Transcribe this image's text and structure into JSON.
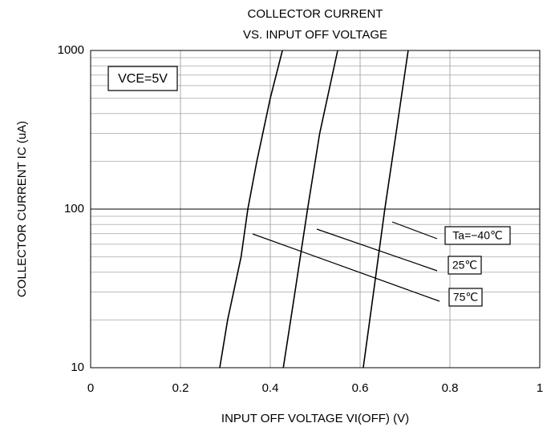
{
  "chart_data": {
    "type": "line",
    "title": [
      "COLLECTOR CURRENT",
      "VS. INPUT OFF VOLTAGE"
    ],
    "xlabel": "INPUT OFF VOLTAGE VI(OFF) (V)",
    "ylabel": "COLLECTOR CURRENT IC (uA)",
    "annotation": "VCE=5V",
    "xlim": [
      0,
      1
    ],
    "xticks": [
      0,
      0.2,
      0.4,
      0.6,
      0.8,
      1
    ],
    "ylim": [
      10,
      1000
    ],
    "yticks": [
      10,
      100,
      1000
    ],
    "yminorticks": [
      20,
      30,
      40,
      50,
      60,
      70,
      80,
      90,
      200,
      300,
      400,
      500,
      600,
      700,
      800,
      900
    ],
    "ylog": true,
    "grid": true,
    "series": [
      {
        "name": "Ta=−40℃",
        "color": "#000000",
        "x": [
          0.607,
          0.63,
          0.655,
          0.68,
          0.707
        ],
        "values": [
          10,
          30,
          100,
          300,
          1000
        ]
      },
      {
        "name": "25℃",
        "color": "#000000",
        "x": [
          0.429,
          0.455,
          0.483,
          0.51,
          0.55
        ],
        "values": [
          10,
          30,
          100,
          300,
          1000
        ]
      },
      {
        "name": "75℃",
        "color": "#000000",
        "x": [
          0.2875,
          0.305,
          0.335,
          0.35,
          0.37,
          0.4,
          0.427
        ],
        "values": [
          10,
          20,
          50,
          100,
          200,
          500,
          1000
        ]
      }
    ]
  }
}
